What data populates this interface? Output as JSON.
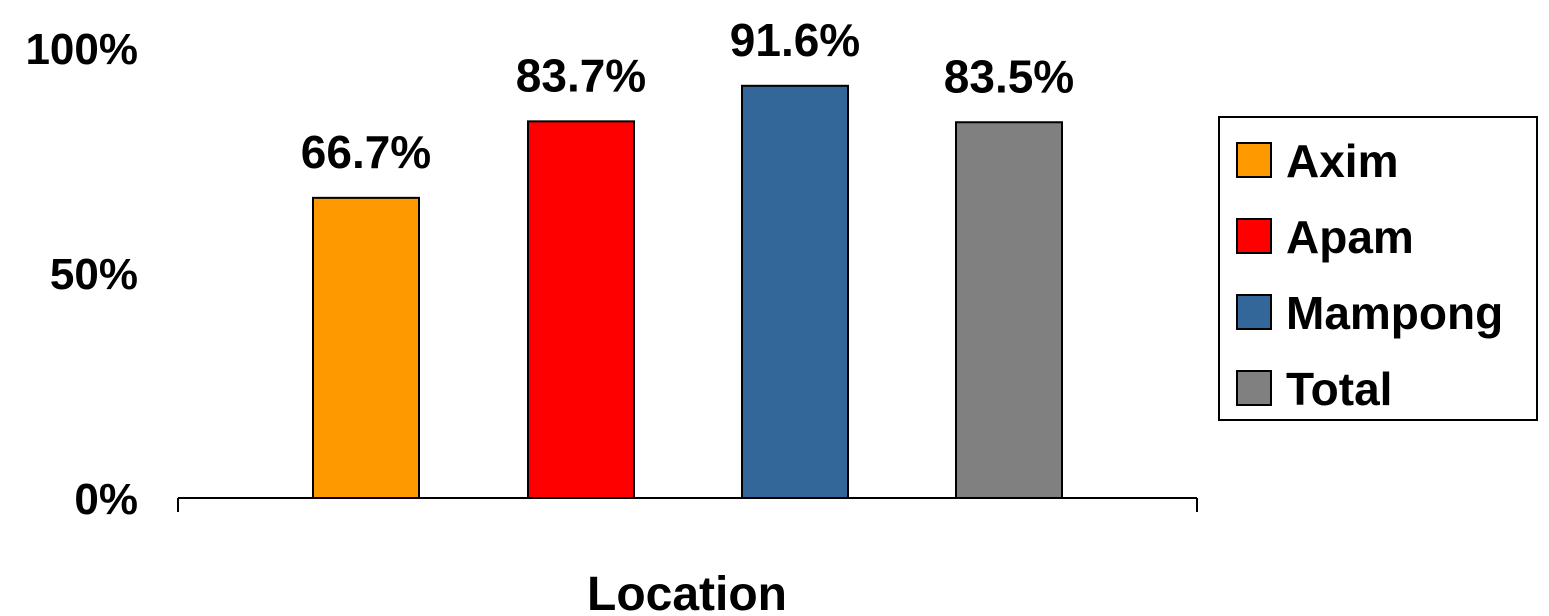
{
  "chart_data": {
    "type": "bar",
    "categories": [
      "Axim",
      "Apam",
      "Mampong",
      "Total"
    ],
    "values": [
      66.7,
      83.7,
      91.6,
      83.5
    ],
    "data_labels": [
      "66.7%",
      "83.7%",
      "91.6%",
      "83.5%"
    ],
    "colors": [
      "#FF9900",
      "#FF0000",
      "#336699",
      "#808080"
    ],
    "xlabel": "Location",
    "ylabel": "",
    "ylim": [
      0,
      100
    ],
    "yticks": [
      {
        "value": 0,
        "label": "0%"
      },
      {
        "value": 50,
        "label": "50%"
      },
      {
        "value": 100,
        "label": "100%"
      }
    ],
    "grid": false,
    "legend": {
      "position": "right",
      "entries": [
        "Axim",
        "Apam",
        "Mampong",
        "Total"
      ]
    }
  }
}
